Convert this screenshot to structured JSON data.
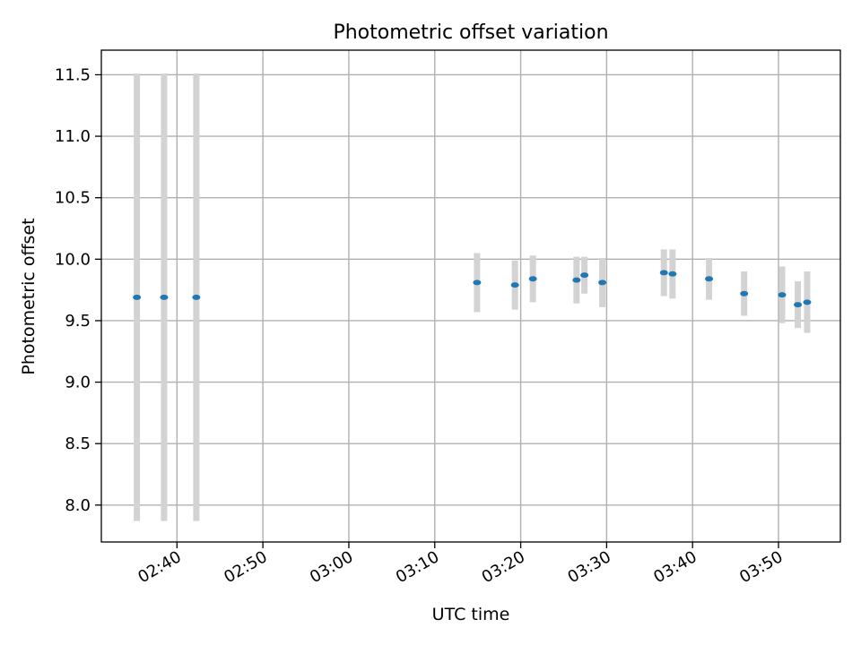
{
  "chart_data": {
    "type": "scatter",
    "title": "Photometric offset variation",
    "xlabel": "UTC time",
    "ylabel": "Photometric offset",
    "x_is_time": true,
    "xlim": [
      "02:31:12",
      "03:57:12"
    ],
    "ylim": [
      7.7,
      11.7
    ],
    "grid": true,
    "yticks": [
      "8.0",
      "8.5",
      "9.0",
      "9.5",
      "10.0",
      "10.5",
      "11.0",
      "11.5"
    ],
    "xticks": [
      "02:40",
      "02:50",
      "03:00",
      "03:10",
      "03:20",
      "03:30",
      "03:40",
      "03:50"
    ],
    "marker_color": "#1f77b4",
    "errorbar_color": "#d3d3d3",
    "points": [
      {
        "x": "02:35:20",
        "y": 9.69,
        "err": 1.82
      },
      {
        "x": "02:38:30",
        "y": 9.69,
        "err": 1.82
      },
      {
        "x": "02:42:15",
        "y": 9.69,
        "err": 1.82
      },
      {
        "x": "03:14:55",
        "y": 9.81,
        "err": 0.24
      },
      {
        "x": "03:19:20",
        "y": 9.79,
        "err": 0.2
      },
      {
        "x": "03:21:25",
        "y": 9.84,
        "err": 0.19
      },
      {
        "x": "03:26:30",
        "y": 9.83,
        "err": 0.19
      },
      {
        "x": "03:27:25",
        "y": 9.87,
        "err": 0.15
      },
      {
        "x": "03:29:30",
        "y": 9.81,
        "err": 0.2
      },
      {
        "x": "03:36:40",
        "y": 9.89,
        "err": 0.19
      },
      {
        "x": "03:37:40",
        "y": 9.88,
        "err": 0.2
      },
      {
        "x": "03:41:55",
        "y": 9.84,
        "err": 0.17
      },
      {
        "x": "03:46:00",
        "y": 9.72,
        "err": 0.18
      },
      {
        "x": "03:50:25",
        "y": 9.71,
        "err": 0.23
      },
      {
        "x": "03:52:15",
        "y": 9.63,
        "err": 0.19
      },
      {
        "x": "03:53:20",
        "y": 9.65,
        "err": 0.25
      }
    ]
  }
}
